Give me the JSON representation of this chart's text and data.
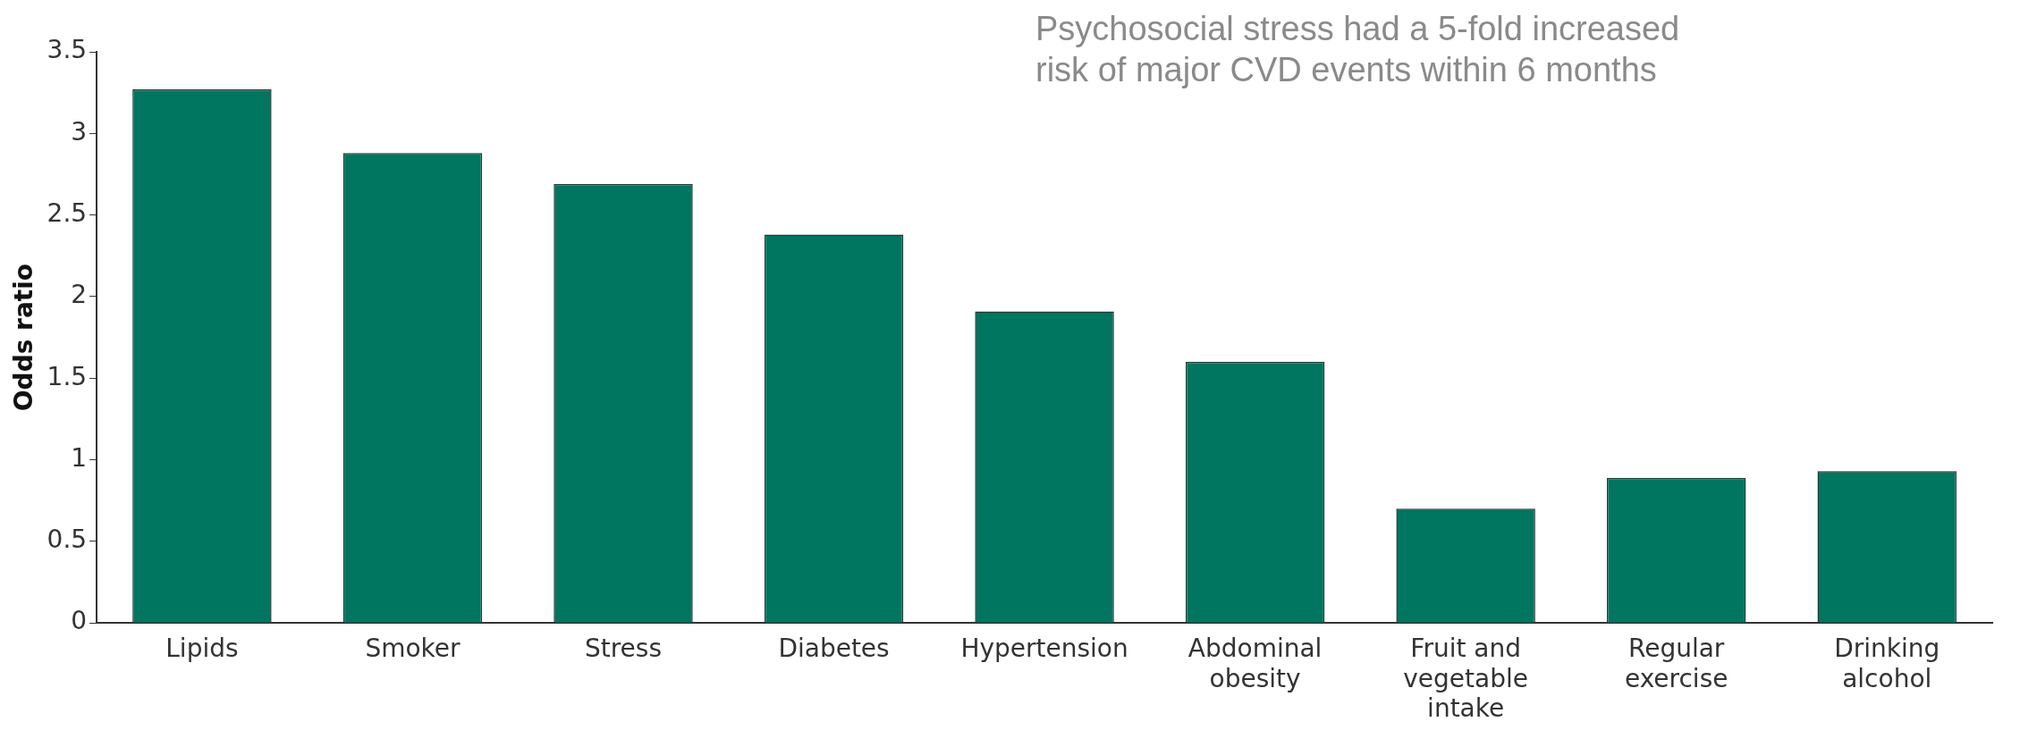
{
  "chart_data": {
    "type": "bar",
    "ylabel": "Odds ratio",
    "categories": [
      "Lipids",
      "Smoker",
      "Stress",
      "Diabetes",
      "Hypertension",
      "Abdominal obesity",
      "Fruit and vegetable intake",
      "Regular exercise",
      "Drinking alcohol"
    ],
    "values": [
      3.27,
      2.88,
      2.69,
      2.38,
      1.91,
      1.6,
      0.7,
      0.89,
      0.93
    ],
    "color": "#00755f",
    "ylim": [
      0,
      3.5
    ],
    "yticks": [
      0,
      0.5,
      1,
      1.5,
      2,
      2.5,
      3,
      3.5
    ],
    "grid": false,
    "annotations": [
      "Psychosocial stress had a 5-fold increased risk of major CVD events within 6 months"
    ]
  }
}
